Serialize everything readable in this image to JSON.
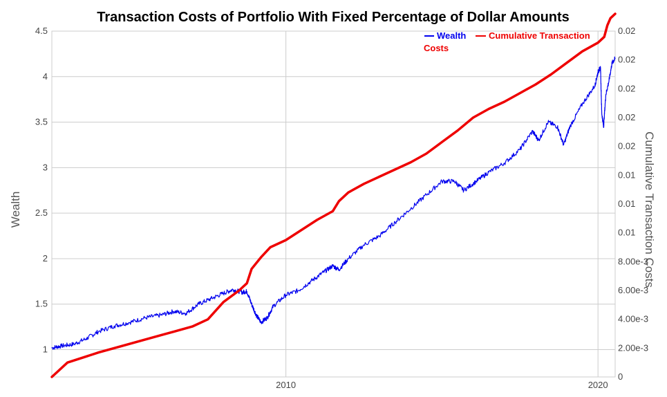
{
  "chart_data": {
    "type": "line",
    "title": "Transaction Costs of Portfolio With Fixed Percentage of Dollar Amounts",
    "ylabel_left": "Wealth",
    "ylabel_right": "Cumulative Transaction Costs",
    "x_range": [
      2002.5,
      2020.55
    ],
    "x_ticks": [
      2010,
      2020
    ],
    "x_tick_labels": [
      "2010",
      "2020"
    ],
    "y_left_range": [
      0.7,
      4.5
    ],
    "y_left_ticks": [
      1,
      1.5,
      2,
      2.5,
      3,
      3.5,
      4,
      4.5
    ],
    "y_left_tick_labels": [
      "1",
      "1.5",
      "2",
      "2.5",
      "3",
      "3.5",
      "4",
      "4.5"
    ],
    "y_right_range": [
      0,
      0.024
    ],
    "y_right_ticks": [
      0,
      0.002,
      0.004,
      0.006,
      0.008,
      0.01,
      0.012,
      0.014,
      0.016,
      0.018,
      0.02,
      0.022,
      0.024
    ],
    "y_right_tick_labels": [
      "0",
      "2.00e-3",
      "4.00e-3",
      "6.00e-3",
      "8.00e-3",
      "0.01",
      "0.01",
      "0.01",
      "0.02",
      "0.02",
      "0.02",
      "0.02",
      "0.02"
    ],
    "grid": true,
    "legend_position": "top-right",
    "series": [
      {
        "name": "Wealth",
        "axis": "left",
        "color": "#0000ee",
        "x": [
          2002.5,
          2002.8,
          2003.2,
          2003.6,
          2004.0,
          2004.5,
          2005.0,
          2005.5,
          2006.0,
          2006.4,
          2006.8,
          2007.2,
          2007.6,
          2008.0,
          2008.3,
          2008.6,
          2008.75,
          2008.9,
          2009.05,
          2009.2,
          2009.4,
          2009.6,
          2010.0,
          2010.4,
          2010.8,
          2011.2,
          2011.5,
          2011.7,
          2012.0,
          2012.5,
          2013.0,
          2013.5,
          2014.0,
          2014.5,
          2015.0,
          2015.4,
          2015.7,
          2016.1,
          2016.5,
          2017.0,
          2017.5,
          2017.9,
          2018.1,
          2018.4,
          2018.7,
          2018.9,
          2019.1,
          2019.5,
          2019.9,
          2020.0,
          2020.08,
          2020.12,
          2020.18,
          2020.25,
          2020.35,
          2020.45,
          2020.55
        ],
        "y": [
          1.02,
          1.04,
          1.06,
          1.12,
          1.2,
          1.26,
          1.3,
          1.35,
          1.38,
          1.42,
          1.4,
          1.5,
          1.56,
          1.62,
          1.66,
          1.63,
          1.64,
          1.5,
          1.38,
          1.3,
          1.35,
          1.48,
          1.6,
          1.65,
          1.75,
          1.85,
          1.92,
          1.88,
          2.0,
          2.15,
          2.25,
          2.4,
          2.55,
          2.7,
          2.85,
          2.85,
          2.75,
          2.85,
          2.95,
          3.05,
          3.2,
          3.4,
          3.3,
          3.5,
          3.45,
          3.25,
          3.45,
          3.7,
          3.9,
          4.05,
          4.1,
          3.6,
          3.45,
          3.8,
          3.95,
          4.15,
          4.2
        ]
      },
      {
        "name": "Cumulative Transaction Costs",
        "axis": "right",
        "color": "#ee0000",
        "x": [
          2002.5,
          2003.0,
          2004.0,
          2005.0,
          2006.0,
          2007.0,
          2007.5,
          2008.0,
          2008.5,
          2008.75,
          2008.9,
          2009.2,
          2009.5,
          2010.0,
          2010.5,
          2011.0,
          2011.5,
          2011.7,
          2012.0,
          2012.5,
          2013.0,
          2013.5,
          2014.0,
          2014.5,
          2015.0,
          2015.5,
          2016.0,
          2016.5,
          2017.0,
          2017.5,
          2018.0,
          2018.5,
          2019.0,
          2019.5,
          2020.0,
          2020.2,
          2020.3,
          2020.4,
          2020.55
        ],
        "y": [
          0,
          0.001,
          0.0017,
          0.0023,
          0.0029,
          0.0035,
          0.004,
          0.0052,
          0.006,
          0.0065,
          0.0075,
          0.0083,
          0.009,
          0.0095,
          0.0102,
          0.0109,
          0.0115,
          0.0122,
          0.0128,
          0.0134,
          0.0139,
          0.0144,
          0.0149,
          0.0155,
          0.0163,
          0.0171,
          0.018,
          0.0186,
          0.0191,
          0.0197,
          0.0203,
          0.021,
          0.0218,
          0.0226,
          0.0232,
          0.0236,
          0.0244,
          0.0249,
          0.0252
        ]
      }
    ]
  }
}
